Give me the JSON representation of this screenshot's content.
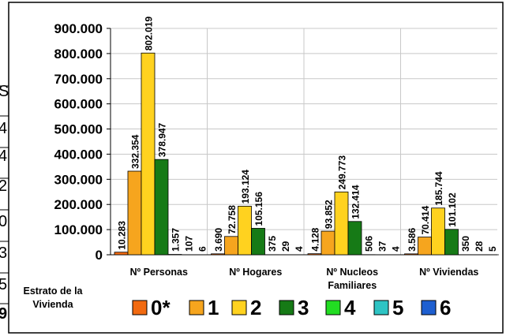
{
  "left_strip_glyphs": [
    "S",
    "4",
    "4",
    "2",
    "0",
    "3",
    "5",
    "9"
  ],
  "chart_data": {
    "type": "bar",
    "categories": [
      "Nº Personas",
      "Nº Hogares",
      "Nº Nucleos Familiares",
      "Nº Viviendas"
    ],
    "category_label_lines": [
      [
        "Nº Personas"
      ],
      [
        "Nº Hogares"
      ],
      [
        "Nº Nucleos",
        "Familiares"
      ],
      [
        "Nº Viviendas"
      ]
    ],
    "series": [
      {
        "name": "0*",
        "color": "#F26A10",
        "values": [
          10283,
          3690,
          4128,
          3586
        ],
        "labels": [
          "10.283",
          "3.690",
          "4.128",
          "3.586"
        ]
      },
      {
        "name": "1",
        "color": "#F6A51E",
        "values": [
          332354,
          72758,
          93852,
          70414
        ],
        "labels": [
          "332.354",
          "72.758",
          "93.852",
          "70.414"
        ]
      },
      {
        "name": "2",
        "color": "#FFD21F",
        "values": [
          802019,
          193124,
          249773,
          185744
        ],
        "labels": [
          "802.019",
          "193.124",
          "249.773",
          "185.744"
        ]
      },
      {
        "name": "3",
        "color": "#167A16",
        "values": [
          378947,
          105156,
          132414,
          101102
        ],
        "labels": [
          "378.947",
          "105.156",
          "132.414",
          "101.102"
        ]
      },
      {
        "name": "4",
        "color": "#22DD22",
        "values": [
          1357,
          375,
          506,
          350
        ],
        "labels": [
          "1.357",
          "375",
          "506",
          "350"
        ]
      },
      {
        "name": "5",
        "color": "#2EC4C4",
        "values": [
          107,
          29,
          37,
          28
        ],
        "labels": [
          "107",
          "29",
          "37",
          "28"
        ]
      },
      {
        "name": "6",
        "color": "#1E5FD0",
        "values": [
          6,
          4,
          4,
          5
        ],
        "labels": [
          "6",
          "4",
          "4",
          "5"
        ]
      }
    ],
    "yticks": [
      0,
      100000,
      200000,
      300000,
      400000,
      500000,
      600000,
      700000,
      800000,
      900000
    ],
    "ytick_labels": [
      "0",
      "100.000",
      "200.000",
      "300.000",
      "400.000",
      "500.000",
      "600.000",
      "700.000",
      "800.000",
      "900.000"
    ],
    "ylim": [
      0,
      900000
    ],
    "grid": true,
    "legend_title": "Estrato de la Vivienda",
    "legend_title_lines": [
      "Estrato de la",
      "Vivienda"
    ],
    "legend_position": "bottom"
  }
}
